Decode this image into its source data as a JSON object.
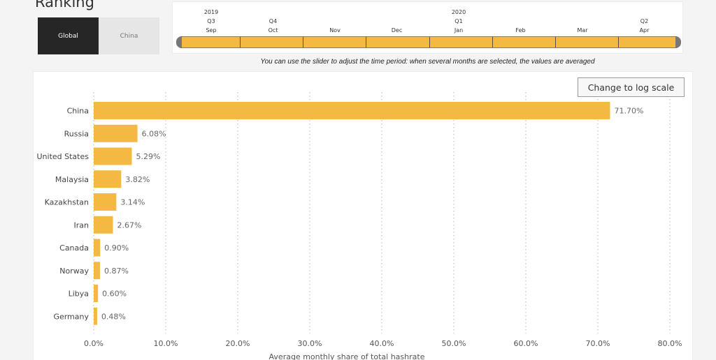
{
  "page": {
    "title": "Ranking"
  },
  "region_toggle": {
    "options": [
      {
        "label": "Global",
        "active": true
      },
      {
        "label": "China",
        "active": false
      }
    ]
  },
  "timeline": {
    "years": [
      {
        "label": "2019",
        "month_index": 0
      },
      {
        "label": "2020",
        "month_index": 4
      }
    ],
    "quarters": [
      {
        "label": "Q3",
        "month_index": 0
      },
      {
        "label": "Q4",
        "month_index": 1
      },
      {
        "label": "Q1",
        "month_index": 4
      },
      {
        "label": "Q2",
        "month_index": 7
      }
    ],
    "months": [
      "Sep",
      "Oct",
      "Nov",
      "Dec",
      "Jan",
      "Feb",
      "Mar",
      "Apr"
    ],
    "note": "You can use the slider to adjust the time period: when several months are selected, the values are averaged",
    "colors": {
      "track": "#f4b942",
      "handle": "#777777"
    }
  },
  "log_scale_button": {
    "label": "Change to log scale"
  },
  "chart_data": {
    "type": "bar",
    "orientation": "horizontal",
    "categories": [
      "China",
      "Russia",
      "United States",
      "Malaysia",
      "Kazakhstan",
      "Iran",
      "Canada",
      "Norway",
      "Libya",
      "Germany"
    ],
    "values": [
      71.7,
      6.08,
      5.29,
      3.82,
      3.14,
      2.67,
      0.9,
      0.87,
      0.6,
      0.48
    ],
    "data_labels": [
      "71.70%",
      "6.08%",
      "5.29%",
      "3.82%",
      "3.14%",
      "2.67%",
      "0.90%",
      "0.87%",
      "0.60%",
      "0.48%"
    ],
    "xlabel": "Average monthly share of total hashrate",
    "xlim": [
      0,
      80
    ],
    "xticks": [
      0,
      10,
      20,
      30,
      40,
      50,
      60,
      70,
      80
    ],
    "xtick_labels": [
      "0.0%",
      "10.0%",
      "20.0%",
      "30.0%",
      "40.0%",
      "50.0%",
      "60.0%",
      "70.0%",
      "80.0%"
    ],
    "grid": "vertical-dotted",
    "bar_color": "#f4b942"
  }
}
